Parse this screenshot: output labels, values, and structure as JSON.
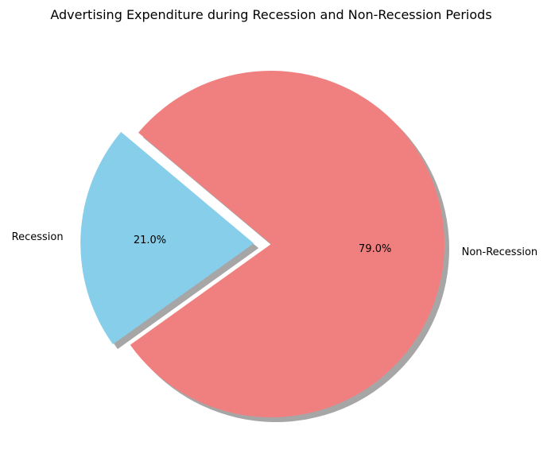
{
  "chart_data": {
    "type": "pie",
    "title": "Advertising Expenditure during Recession and Non-Recession Periods",
    "start_angle_deg": 140,
    "shadow": true,
    "slices": [
      {
        "label": "Recession",
        "value": 21.0,
        "pct_label": "21.0%",
        "color": "#87CEEB",
        "exploded": true
      },
      {
        "label": "Non-Recession",
        "value": 79.0,
        "pct_label": "79.0%",
        "color": "#F08080",
        "exploded": false
      }
    ]
  }
}
